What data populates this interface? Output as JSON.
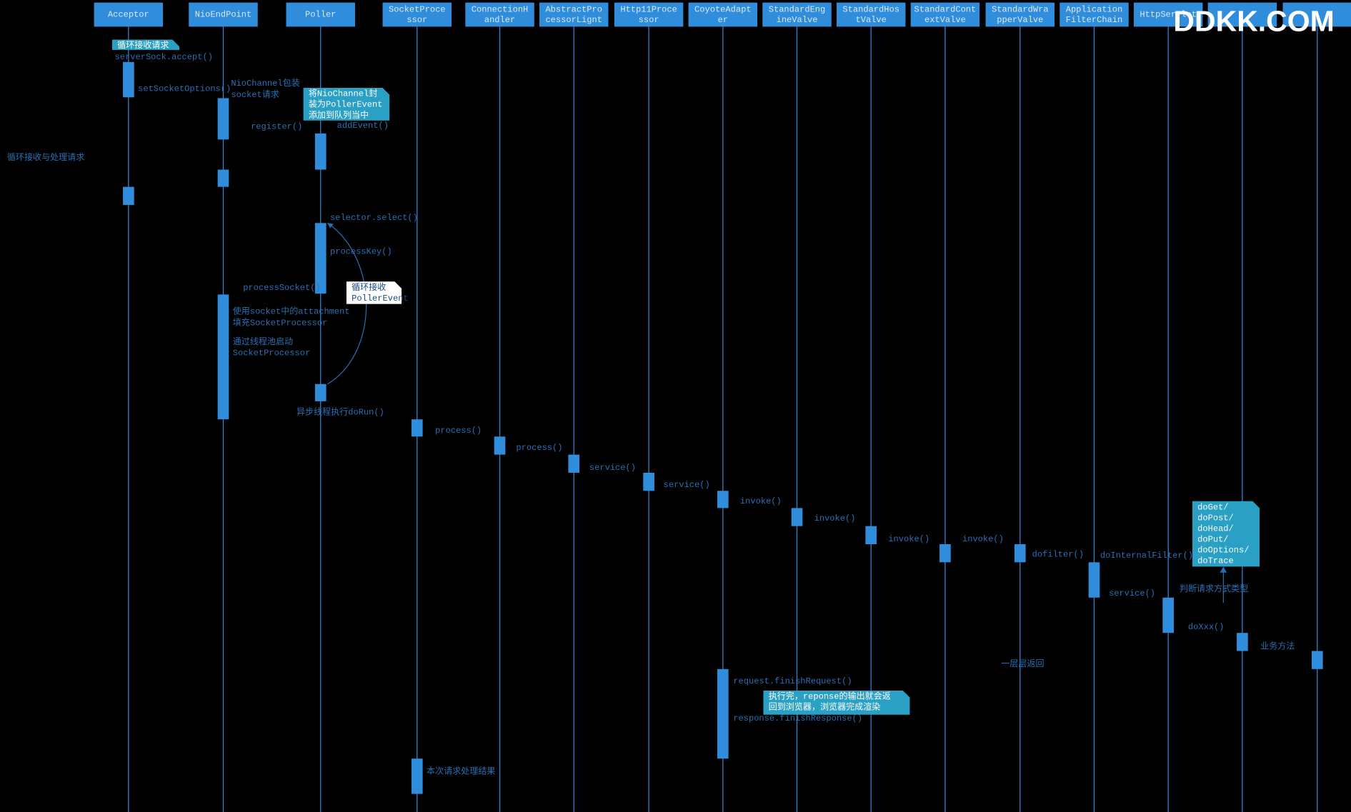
{
  "watermark": "DDKK.COM",
  "participants": [
    {
      "lines": [
        "Acceptor"
      ]
    },
    {
      "lines": [
        "NioEndPoint"
      ]
    },
    {
      "lines": [
        "Poller"
      ]
    },
    {
      "lines": [
        "SocketProce",
        "ssor"
      ]
    },
    {
      "lines": [
        "ConnectionH",
        "andler"
      ]
    },
    {
      "lines": [
        "AbstractPro",
        "cessorLignt"
      ]
    },
    {
      "lines": [
        "Http11Proce",
        "ssor"
      ]
    },
    {
      "lines": [
        "CoyoteAdapt",
        "er"
      ]
    },
    {
      "lines": [
        "StandardEng",
        "ineValve"
      ]
    },
    {
      "lines": [
        "StandardHos",
        "tValve"
      ]
    },
    {
      "lines": [
        "StandardCont",
        "extValve"
      ]
    },
    {
      "lines": [
        "StandardWra",
        "pperValve"
      ]
    },
    {
      "lines": [
        "Application",
        "FilterChain"
      ]
    },
    {
      "lines": [
        "HttpServlet"
      ]
    }
  ],
  "labels": [
    {
      "lines": [
        "serverSock.accept()"
      ]
    },
    {
      "lines": [
        "setSocketOptions()"
      ]
    },
    {
      "lines": [
        "NioChannel包装",
        "socket请求"
      ]
    },
    {
      "lines": [
        "register()"
      ]
    },
    {
      "lines": [
        "addEvent()"
      ]
    },
    {
      "lines": [
        "循环接收与处理请求"
      ]
    },
    {
      "lines": [
        "selector.select()"
      ]
    },
    {
      "lines": [
        "processKey()"
      ]
    },
    {
      "lines": [
        "processSocket()"
      ]
    },
    {
      "lines": [
        "使用socket中的attachment",
        "填充SocketProcessor"
      ]
    },
    {
      "lines": [
        "通过线程池启动",
        "SocketProcessor"
      ]
    },
    {
      "lines": [
        "异步线程执行doRun()"
      ]
    },
    {
      "lines": [
        "process()"
      ]
    },
    {
      "lines": [
        "process()"
      ]
    },
    {
      "lines": [
        "service()"
      ]
    },
    {
      "lines": [
        "service()"
      ]
    },
    {
      "lines": [
        "invoke()"
      ]
    },
    {
      "lines": [
        "invoke()"
      ]
    },
    {
      "lines": [
        "invoke()"
      ]
    },
    {
      "lines": [
        "invoke()"
      ]
    },
    {
      "lines": [
        "dofilter()"
      ]
    },
    {
      "lines": [
        "doInternalFilter()"
      ]
    },
    {
      "lines": [
        "service()"
      ]
    },
    {
      "lines": [
        "判断请求方式类型"
      ]
    },
    {
      "lines": [
        "doXxx()"
      ]
    },
    {
      "lines": [
        "业务方法"
      ]
    },
    {
      "lines": [
        "一层层返回"
      ]
    },
    {
      "lines": [
        "request.finishRequest()"
      ]
    },
    {
      "lines": [
        "response.finishResponse()"
      ]
    },
    {
      "lines": [
        "本次请求处理结果"
      ]
    }
  ],
  "notes": [
    {
      "lines": [
        "循环接收请求"
      ]
    },
    {
      "lines": [
        "将NioChannel封",
        "装为PollerEvent",
        "添加到队列当中"
      ]
    },
    {
      "lines": [
        "循环接收",
        "PollerEvent"
      ]
    },
    {
      "lines": [
        "doGet/",
        "doPost/",
        "doHead/",
        "doPut/",
        "doOptions/",
        "doTrace"
      ]
    },
    {
      "lines": [
        "执行完，reponse的输出就会返",
        "回到浏览器，浏览器完成渲染"
      ]
    }
  ]
}
